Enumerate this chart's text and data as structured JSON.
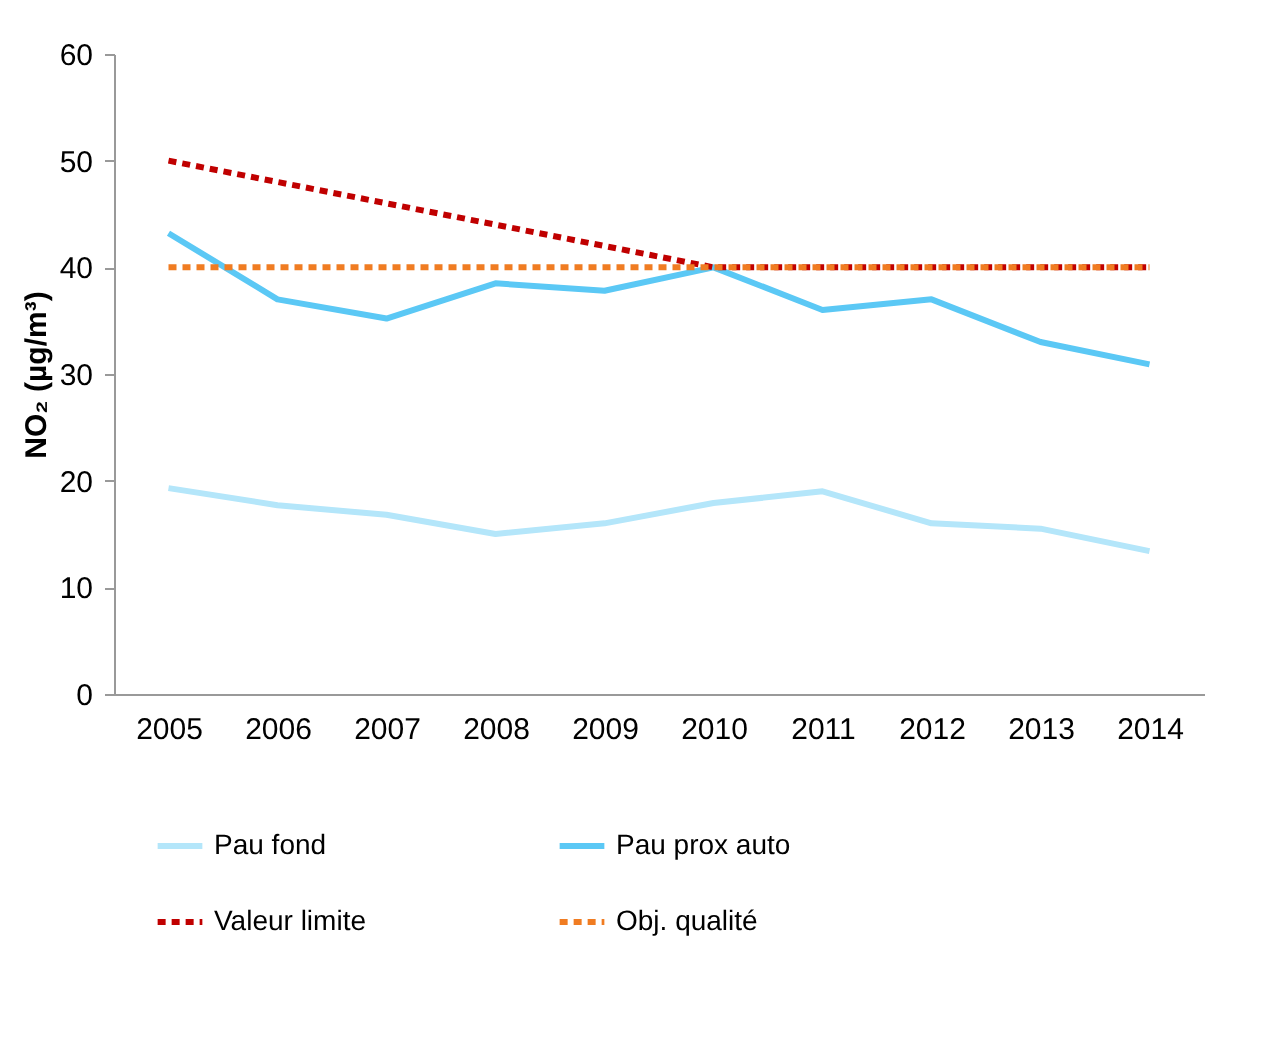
{
  "chart_data": {
    "type": "line",
    "ylabel": "NO₂ (µg/m³)",
    "categories": [
      "2005",
      "2006",
      "2007",
      "2008",
      "2009",
      "2010",
      "2011",
      "2012",
      "2013",
      "2014"
    ],
    "ylim": [
      0,
      60
    ],
    "yticks": [
      0,
      10,
      20,
      30,
      40,
      50,
      60
    ],
    "grid": false,
    "legend": "bottom",
    "marker": "none",
    "series": [
      {
        "name": "Pau fond",
        "color": "#b4e6fa",
        "line_style": "solid",
        "values": [
          19.3,
          17.7,
          16.8,
          15.0,
          16.0,
          17.9,
          19.0,
          16.0,
          15.5,
          13.4
        ]
      },
      {
        "name": "Pau prox auto",
        "color": "#5bc8f5",
        "line_style": "solid",
        "values": [
          43.2,
          37.0,
          35.2,
          38.5,
          37.8,
          40.0,
          36.0,
          37.0,
          33.0,
          30.9
        ]
      },
      {
        "name": "Valeur limite",
        "color": "#c00000",
        "line_style": "dashed",
        "values": [
          50,
          48,
          46,
          44,
          42,
          40,
          40,
          40,
          40,
          40
        ]
      },
      {
        "name": "Obj. qualité",
        "color": "#f07c22",
        "line_style": "dashed",
        "values": [
          40,
          40,
          40,
          40,
          40,
          40,
          40,
          40,
          40,
          40
        ]
      }
    ]
  }
}
